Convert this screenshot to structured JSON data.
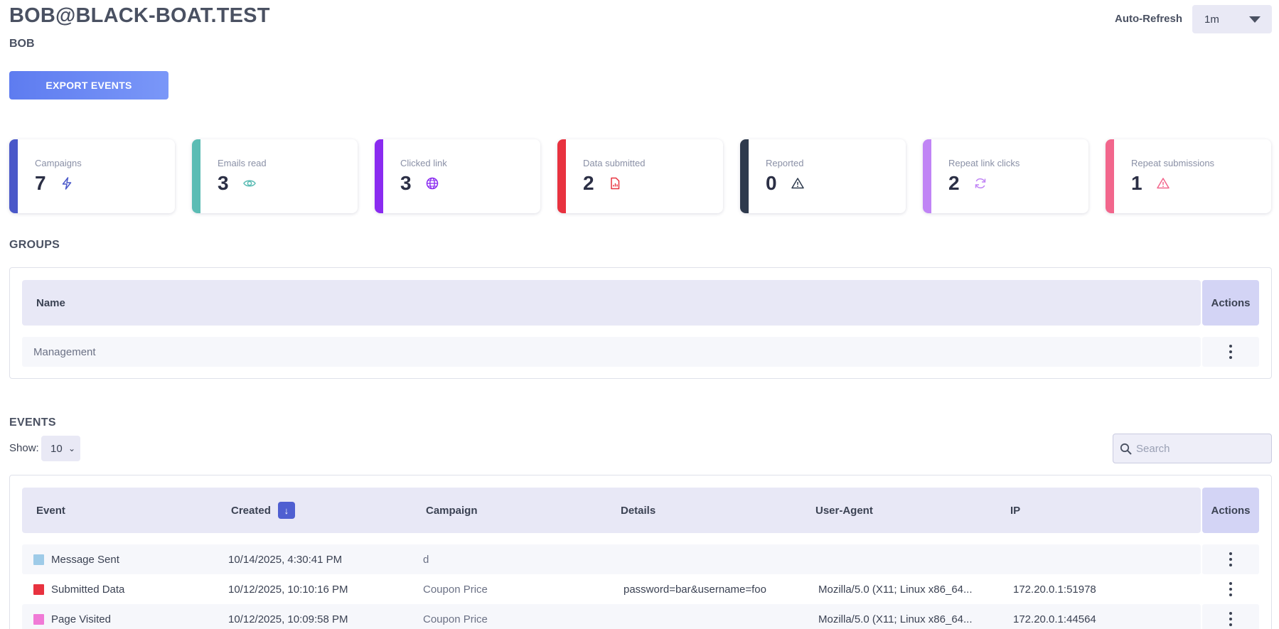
{
  "header": {
    "title": "BOB@BLACK-BOAT.TEST",
    "subtitle": "BOB",
    "export_label": "EXPORT EVENTS",
    "autorefresh_label": "Auto-Refresh",
    "autorefresh_value": "1m"
  },
  "stats": [
    {
      "label": "Campaigns",
      "value": "7",
      "icon": "lightning-icon",
      "color": "#4a58c9"
    },
    {
      "label": "Emails read",
      "value": "3",
      "icon": "eye-icon",
      "color": "#5bbcb4"
    },
    {
      "label": "Clicked link",
      "value": "3",
      "icon": "globe-icon",
      "color": "#8a2bf0"
    },
    {
      "label": "Data submitted",
      "value": "2",
      "icon": "document-chart-icon",
      "color": "#e8323f"
    },
    {
      "label": "Reported",
      "value": "0",
      "icon": "warning-icon",
      "color": "#2e3a4d"
    },
    {
      "label": "Repeat link clicks",
      "value": "2",
      "icon": "refresh-icon",
      "color": "#c084f5"
    },
    {
      "label": "Repeat submissions",
      "value": "1",
      "icon": "warning-icon",
      "color": "#f2668c"
    }
  ],
  "groups": {
    "title": "GROUPS",
    "columns": {
      "name": "Name",
      "actions": "Actions"
    },
    "rows": [
      {
        "name": "Management"
      }
    ]
  },
  "events": {
    "title": "EVENTS",
    "show_label": "Show:",
    "show_value": "10",
    "search_placeholder": "Search",
    "columns": {
      "event": "Event",
      "created": "Created",
      "campaign": "Campaign",
      "details": "Details",
      "user_agent": "User-Agent",
      "ip": "IP",
      "actions": "Actions"
    },
    "rows": [
      {
        "event": "Message Sent",
        "color": "#9ecbe8",
        "created": "10/14/2025, 4:30:41 PM",
        "campaign": "d",
        "details": "",
        "user_agent": "",
        "ip": ""
      },
      {
        "event": "Submitted Data",
        "color": "#e8323f",
        "created": "10/12/2025, 10:10:16 PM",
        "campaign": "Coupon Price",
        "details": "password=bar&username=foo",
        "user_agent": "Mozilla/5.0 (X11; Linux x86_64...",
        "ip": "172.20.0.1:51978"
      },
      {
        "event": "Page Visited",
        "color": "#f07ad6",
        "created": "10/12/2025, 10:09:58 PM",
        "campaign": "Coupon Price",
        "details": "",
        "user_agent": "Mozilla/5.0 (X11; Linux x86_64...",
        "ip": "172.20.0.1:44564"
      }
    ]
  }
}
